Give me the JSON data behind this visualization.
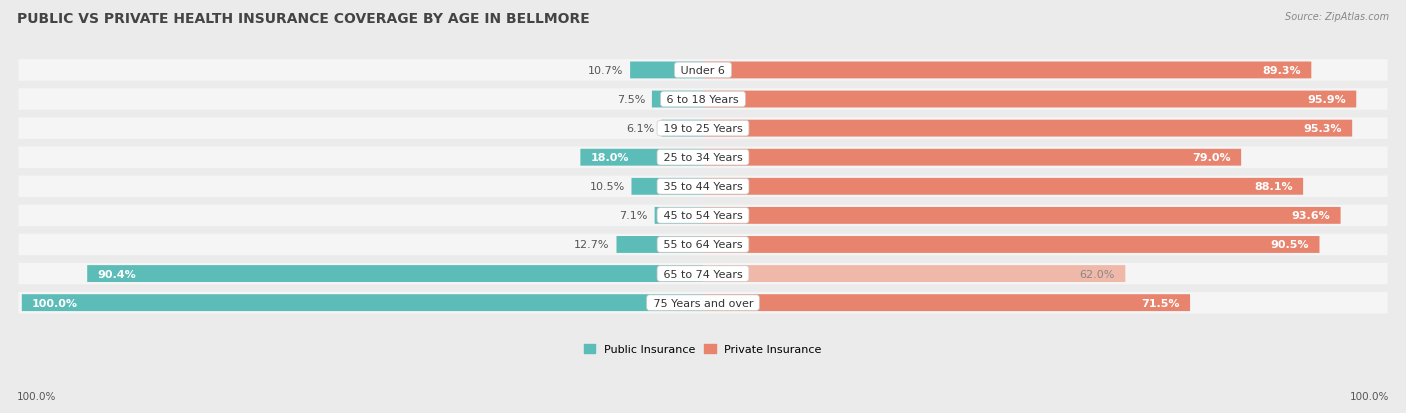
{
  "title": "PUBLIC VS PRIVATE HEALTH INSURANCE COVERAGE BY AGE IN BELLMORE",
  "source": "Source: ZipAtlas.com",
  "categories": [
    "Under 6",
    "6 to 18 Years",
    "19 to 25 Years",
    "25 to 34 Years",
    "35 to 44 Years",
    "45 to 54 Years",
    "55 to 64 Years",
    "65 to 74 Years",
    "75 Years and over"
  ],
  "public_values": [
    10.7,
    7.5,
    6.1,
    18.0,
    10.5,
    7.1,
    12.7,
    90.4,
    100.0
  ],
  "private_values": [
    89.3,
    95.9,
    95.3,
    79.0,
    88.1,
    93.6,
    90.5,
    62.0,
    71.5
  ],
  "public_color": "#5bbcb8",
  "private_color": "#e8836d",
  "private_color_light": "#f0b8a8",
  "bg_color": "#ebebeb",
  "bar_bg_color": "#f5f5f5",
  "title_fontsize": 10,
  "label_fontsize": 8,
  "tick_fontsize": 7.5,
  "legend_fontsize": 8,
  "x_left_label": "100.0%",
  "x_right_label": "100.0%",
  "max_val": 100.0
}
